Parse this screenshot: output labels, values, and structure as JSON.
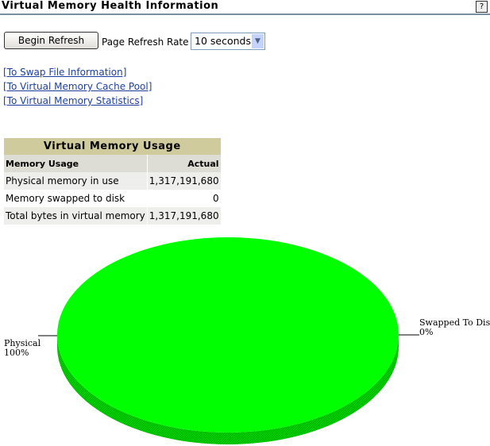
{
  "header": {
    "title": "Virtual Memory Health Information",
    "help_icon": "?"
  },
  "toolbar": {
    "refresh_label": "Begin Refresh",
    "rate_label": "Page Refresh Rate",
    "rate_value": "10 seconds"
  },
  "links": [
    "[To Swap File Information]",
    "[To Virtual Memory Cache Pool]",
    "[To Virtual Memory Statistics]"
  ],
  "table": {
    "caption": "Virtual Memory Usage",
    "headers": [
      "Memory Usage",
      "Actual"
    ],
    "rows": [
      [
        "Physical memory in use",
        "1,317,191,680"
      ],
      [
        "Memory swapped to disk",
        "0"
      ],
      [
        "Total bytes in virtual memory",
        "1,317,191,680"
      ]
    ]
  },
  "chart_data": {
    "type": "pie",
    "slices": [
      {
        "label": "Physical",
        "percent_label": "100%",
        "value": 100,
        "color": "#00ff00"
      },
      {
        "label": "Swapped To Disk",
        "percent_label": "0%",
        "value": 0,
        "color": "#ff0000"
      }
    ]
  }
}
